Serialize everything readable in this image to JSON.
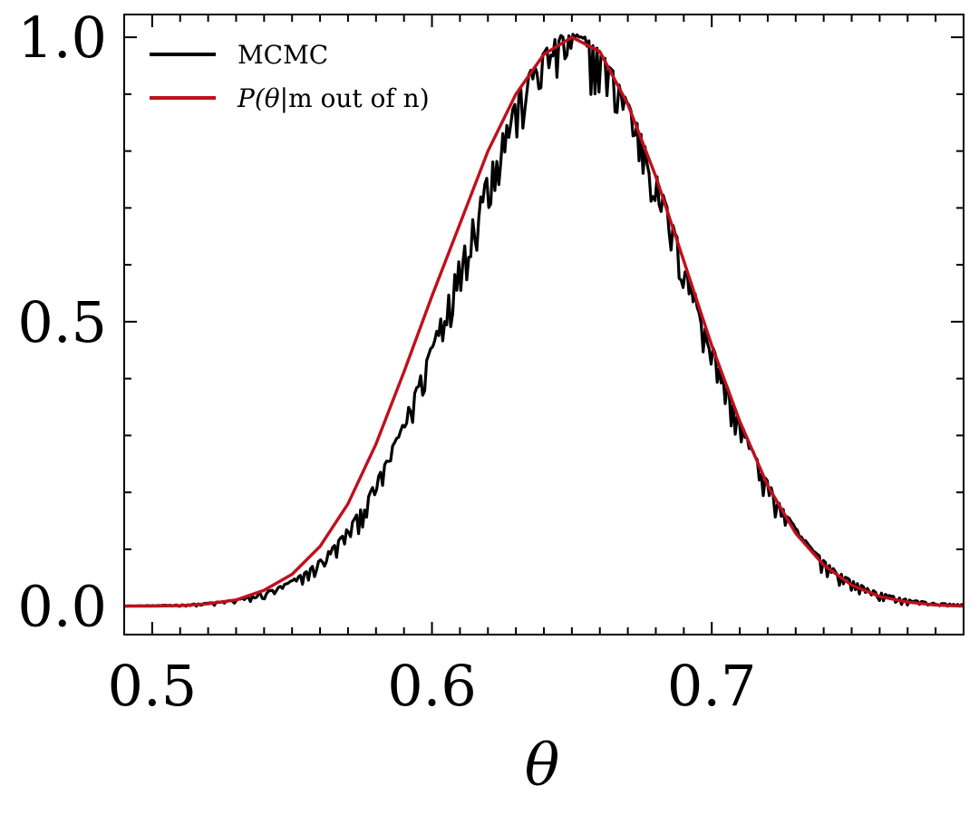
{
  "chart_data": {
    "type": "line",
    "title": "",
    "xlabel": "θ",
    "ylabel": "",
    "xlim": [
      0.49,
      0.79
    ],
    "ylim": [
      -0.05,
      1.04
    ],
    "xticks": [
      {
        "value": 0.5,
        "label": "0.5"
      },
      {
        "value": 0.6,
        "label": "0.6"
      },
      {
        "value": 0.7,
        "label": "0.7"
      }
    ],
    "yticks": [
      {
        "value": 0.0,
        "label": "0.0"
      },
      {
        "value": 0.5,
        "label": "0.5"
      },
      {
        "value": 1.0,
        "label": "1.0"
      }
    ],
    "x_minor_step": 0.01,
    "y_minor_step": 0.1,
    "grid": false,
    "legend_position": "top-left",
    "series": [
      {
        "name": "MCMC",
        "legend_label": "MCMC",
        "color": "#000000",
        "style": "noisy",
        "mean": 0.65,
        "sd": 0.04,
        "x_range": [
          0.49,
          0.79
        ],
        "n_points": 420,
        "noise_amplitude": 0.08
      },
      {
        "name": "P(θ|m out of n)",
        "legend_prefix": "P",
        "legend_math": "(θ|",
        "legend_suffix": "m out of n)",
        "color": "#c0101c",
        "style": "smooth",
        "x": [
          0.49,
          0.5,
          0.51,
          0.52,
          0.53,
          0.54,
          0.55,
          0.56,
          0.57,
          0.58,
          0.59,
          0.6,
          0.61,
          0.62,
          0.63,
          0.64,
          0.65,
          0.66,
          0.67,
          0.68,
          0.69,
          0.7,
          0.71,
          0.72,
          0.73,
          0.74,
          0.75,
          0.76,
          0.77,
          0.78,
          0.79
        ],
        "y": [
          0.0,
          0.0,
          0.001,
          0.004,
          0.011,
          0.028,
          0.056,
          0.105,
          0.18,
          0.285,
          0.412,
          0.545,
          0.672,
          0.8,
          0.9,
          0.97,
          1.0,
          0.975,
          0.882,
          0.755,
          0.607,
          0.458,
          0.325,
          0.212,
          0.128,
          0.072,
          0.037,
          0.017,
          0.007,
          0.002,
          0.0
        ]
      }
    ]
  }
}
